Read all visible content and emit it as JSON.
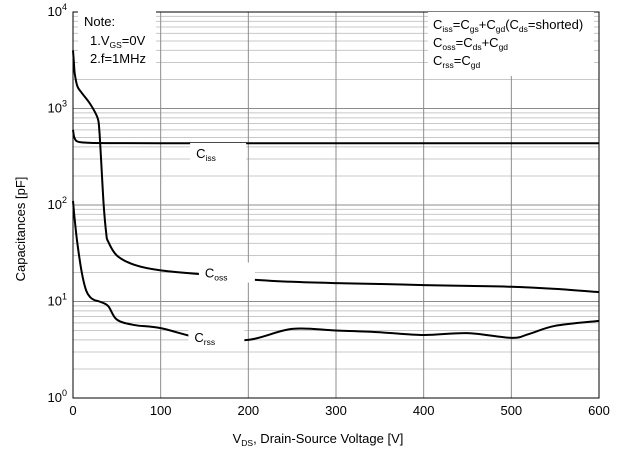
{
  "chart_data": {
    "type": "line",
    "xlabel": {
      "main": "V",
      "sub": "DS",
      "rest": ", Drain-Source Voltage [V]"
    },
    "ylabel": "Capacitances [pF]",
    "xlim": [
      0,
      600
    ],
    "ylim": [
      1,
      10000
    ],
    "yscale": "log",
    "grid": true,
    "x_ticks": [
      {
        "value": 0,
        "label": "0"
      },
      {
        "value": 100,
        "label": "100"
      },
      {
        "value": 200,
        "label": "200"
      },
      {
        "value": 300,
        "label": "300"
      },
      {
        "value": 400,
        "label": "400"
      },
      {
        "value": 500,
        "label": "500"
      },
      {
        "value": 600,
        "label": "600"
      }
    ],
    "y_ticks": [
      {
        "value": 1,
        "base": "10",
        "exp": "0"
      },
      {
        "value": 10,
        "base": "10",
        "exp": "1"
      },
      {
        "value": 100,
        "base": "10",
        "exp": "2"
      },
      {
        "value": 1000,
        "base": "10",
        "exp": "3"
      },
      {
        "value": 10000,
        "base": "10",
        "exp": "4"
      }
    ],
    "note": {
      "title": "Note:",
      "line1_pre": "1.V",
      "line1_sub": "GS",
      "line1_post": "=0V",
      "line2": "2.f=1MHz"
    },
    "definitions": [
      {
        "parts": [
          [
            "C",
            ""
          ],
          [
            "iss",
            "sub"
          ],
          [
            "=C",
            ""
          ],
          [
            "gs",
            "sub"
          ],
          [
            "+C",
            ""
          ],
          [
            "gd",
            "sub"
          ],
          [
            "(C",
            ""
          ],
          [
            "ds",
            "sub"
          ],
          [
            "=shorted)",
            ""
          ]
        ]
      },
      {
        "parts": [
          [
            "C",
            ""
          ],
          [
            "oss",
            "sub"
          ],
          [
            "=C",
            ""
          ],
          [
            "ds",
            "sub"
          ],
          [
            "+C",
            ""
          ],
          [
            "gd",
            "sub"
          ]
        ]
      },
      {
        "parts": [
          [
            "C",
            ""
          ],
          [
            "rss",
            "sub"
          ],
          [
            "=C",
            ""
          ],
          [
            "gd",
            "sub"
          ]
        ]
      }
    ],
    "series": [
      {
        "name": "Ciss",
        "label_main": "C",
        "label_sub": "iss",
        "label_at": {
          "x": 145,
          "y": 330
        },
        "x": [
          0,
          1,
          2,
          3,
          5,
          10,
          20,
          40,
          100,
          200,
          300,
          400,
          500,
          600
        ],
        "y": [
          600,
          520,
          490,
          470,
          455,
          445,
          440,
          438,
          437,
          436,
          436,
          436,
          436,
          436
        ]
      },
      {
        "name": "Coss",
        "label_main": "C",
        "label_sub": "oss",
        "label_at": {
          "x": 155,
          "y": 19
        },
        "x": [
          0,
          1,
          2,
          5,
          10,
          20,
          28,
          30,
          32,
          35,
          38,
          40,
          50,
          70,
          100,
          150,
          200,
          250,
          300,
          350,
          400,
          450,
          500,
          550,
          600
        ],
        "y": [
          4000,
          3000,
          2300,
          1700,
          1450,
          1100,
          800,
          600,
          300,
          100,
          50,
          42,
          30,
          24,
          21,
          19,
          17,
          16,
          15.5,
          15.2,
          14.8,
          14.5,
          14.2,
          13.5,
          12.5
        ]
      },
      {
        "name": "Crss",
        "label_main": "C",
        "label_sub": "rss",
        "label_at": {
          "x": 143,
          "y": 4.1
        },
        "x": [
          0,
          2,
          5,
          10,
          15,
          20,
          25,
          30,
          40,
          50,
          70,
          100,
          150,
          200,
          250,
          300,
          350,
          400,
          450,
          500,
          520,
          550,
          600
        ],
        "y": [
          110,
          70,
          40,
          20,
          13,
          11,
          10.3,
          10,
          9,
          6.5,
          5.7,
          5.3,
          4.1,
          4.0,
          5.2,
          5.0,
          4.8,
          4.5,
          4.7,
          4.2,
          4.6,
          5.6,
          6.3
        ]
      }
    ]
  }
}
